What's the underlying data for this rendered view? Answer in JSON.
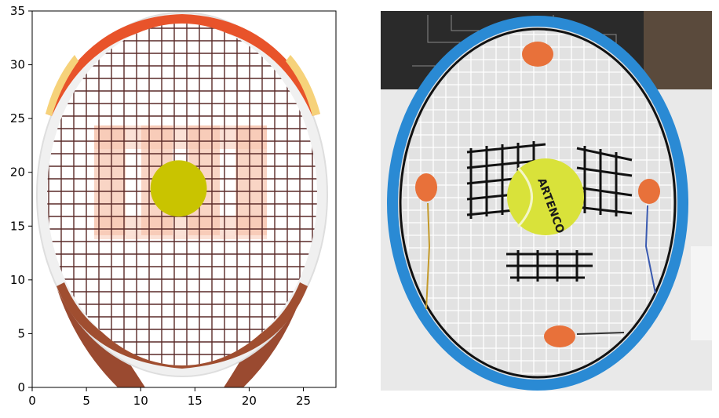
{
  "plot": {
    "x_ticks": [
      "0",
      "5",
      "10",
      "15",
      "20",
      "25"
    ],
    "y_ticks": [
      "0",
      "5",
      "10",
      "15",
      "20",
      "25",
      "30",
      "35"
    ],
    "x_range": [
      0,
      28
    ],
    "y_range": [
      0,
      35
    ],
    "ball_center": [
      13.5,
      18.5
    ],
    "ball_radius": 2.6,
    "ball_color": "#c9c400",
    "frame_top_color": "#e8532a",
    "frame_side_color": "#f0f0f0",
    "throat_color": "#9a4a30",
    "string_color": "#5a2a28",
    "logo_color": "#f7c3ad"
  },
  "photo": {
    "ball_text": "ARTENCO",
    "ball_color": "#d9e23a",
    "frame_color": "#2a8ad4",
    "pad_color": "#e8713a"
  }
}
